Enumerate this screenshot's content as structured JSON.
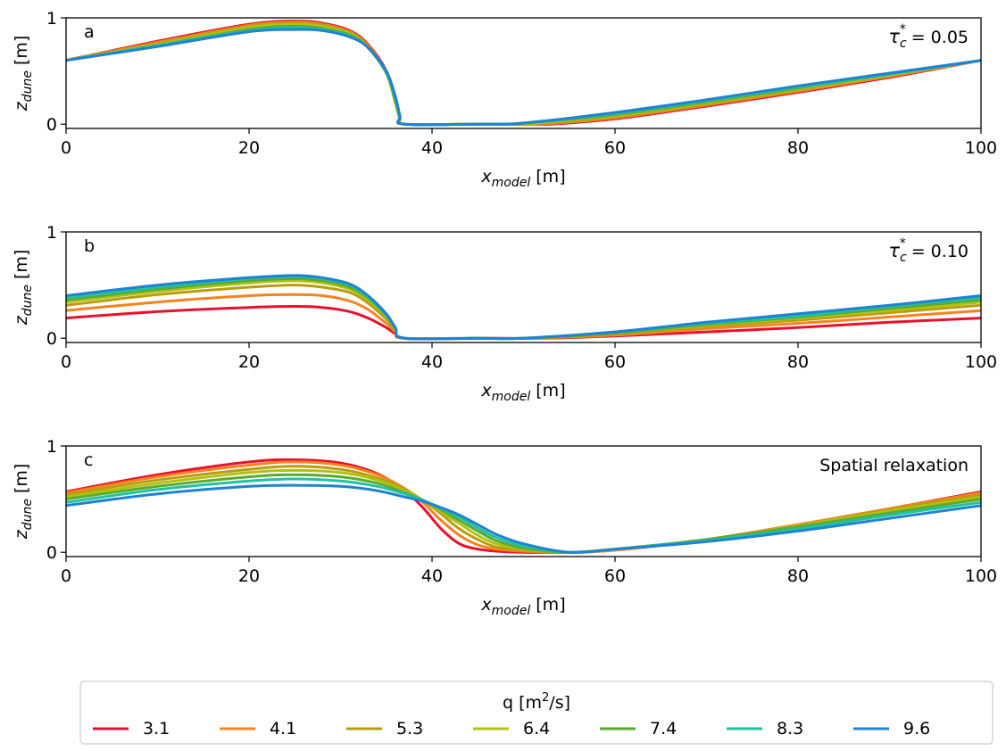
{
  "chart_data": [
    {
      "type": "line",
      "panel_label": "a",
      "annotation": "τ",
      "annotation_sub": "c",
      "annotation_sup": "*",
      "annotation_value": " = 0.05",
      "xlabel_main": "x",
      "xlabel_sub": "model",
      "xlabel_unit": " [m]",
      "ylabel_main": "z",
      "ylabel_sub": "dune",
      "ylabel_unit": " [m]",
      "xlim": [
        0,
        100
      ],
      "ylim": [
        -0.04,
        1.0
      ],
      "xticks": [
        "0",
        "20",
        "40",
        "60",
        "80",
        "100"
      ],
      "yticks": [
        "0",
        "1"
      ],
      "series": [
        {
          "name": "3.1",
          "x": [
            0,
            10,
            20,
            25,
            28,
            31,
            33,
            35,
            36,
            36.5,
            37,
            45,
            50,
            53,
            60,
            70,
            80,
            90,
            100
          ],
          "y": [
            0.6,
            0.78,
            0.94,
            0.97,
            0.95,
            0.88,
            0.75,
            0.5,
            0.2,
            0.05,
            0,
            0,
            0,
            0,
            0.05,
            0.17,
            0.3,
            0.44,
            0.6
          ]
        },
        {
          "name": "4.1",
          "x": [
            0,
            10,
            20,
            25,
            28,
            31,
            33,
            35,
            36,
            36.5,
            37,
            45,
            49,
            52,
            60,
            70,
            80,
            90,
            100
          ],
          "y": [
            0.6,
            0.77,
            0.93,
            0.96,
            0.94,
            0.87,
            0.74,
            0.49,
            0.2,
            0.05,
            0,
            0,
            0,
            0,
            0.06,
            0.18,
            0.31,
            0.45,
            0.6
          ]
        },
        {
          "name": "5.3",
          "x": [
            0,
            10,
            20,
            25,
            28,
            31,
            33,
            35,
            36,
            36.5,
            37,
            45,
            48,
            51,
            60,
            70,
            80,
            90,
            100
          ],
          "y": [
            0.6,
            0.76,
            0.92,
            0.95,
            0.93,
            0.86,
            0.73,
            0.49,
            0.2,
            0.05,
            0,
            0,
            0,
            0,
            0.07,
            0.19,
            0.32,
            0.46,
            0.6
          ]
        },
        {
          "name": "6.4",
          "x": [
            0,
            10,
            20,
            25,
            28,
            31,
            33,
            35,
            36,
            36.5,
            37,
            45,
            48,
            51,
            60,
            70,
            80,
            90,
            100
          ],
          "y": [
            0.6,
            0.75,
            0.91,
            0.94,
            0.92,
            0.85,
            0.72,
            0.48,
            0.2,
            0.05,
            0,
            0,
            0,
            0.01,
            0.08,
            0.2,
            0.33,
            0.46,
            0.6
          ]
        },
        {
          "name": "7.4",
          "x": [
            0,
            10,
            20,
            25,
            28,
            31,
            33,
            35,
            36,
            36.5,
            37,
            45,
            47,
            50,
            60,
            70,
            80,
            90,
            100
          ],
          "y": [
            0.6,
            0.74,
            0.89,
            0.92,
            0.9,
            0.84,
            0.72,
            0.48,
            0.22,
            0.06,
            0,
            0,
            0,
            0.01,
            0.09,
            0.21,
            0.34,
            0.47,
            0.6
          ]
        },
        {
          "name": "8.3",
          "x": [
            0,
            10,
            20,
            25,
            28,
            31,
            33,
            35,
            36,
            36.5,
            37,
            45,
            47,
            50,
            60,
            70,
            80,
            90,
            100
          ],
          "y": [
            0.6,
            0.74,
            0.88,
            0.91,
            0.89,
            0.83,
            0.72,
            0.49,
            0.24,
            0.07,
            0,
            0,
            0,
            0.01,
            0.1,
            0.22,
            0.35,
            0.47,
            0.6
          ]
        },
        {
          "name": "9.6",
          "x": [
            0,
            10,
            20,
            25,
            28,
            31,
            33,
            35,
            36,
            36.5,
            37,
            45,
            47,
            50,
            60,
            70,
            80,
            90,
            100
          ],
          "y": [
            0.6,
            0.73,
            0.87,
            0.89,
            0.88,
            0.82,
            0.72,
            0.5,
            0.26,
            0.08,
            0,
            0,
            0,
            0.01,
            0.11,
            0.23,
            0.36,
            0.48,
            0.6
          ]
        }
      ]
    },
    {
      "type": "line",
      "panel_label": "b",
      "annotation": "τ",
      "annotation_sub": "c",
      "annotation_sup": "*",
      "annotation_value": " = 0.10",
      "xlabel_main": "x",
      "xlabel_sub": "model",
      "xlabel_unit": " [m]",
      "ylabel_main": "z",
      "ylabel_sub": "dune",
      "ylabel_unit": " [m]",
      "xlim": [
        0,
        100
      ],
      "ylim": [
        -0.04,
        1.0
      ],
      "xticks": [
        "0",
        "20",
        "40",
        "60",
        "80",
        "100"
      ],
      "yticks": [
        "0",
        "1"
      ],
      "series": [
        {
          "name": "3.1",
          "x": [
            0,
            10,
            20,
            25,
            28,
            31,
            33,
            35,
            36,
            37,
            45,
            52,
            60,
            70,
            80,
            90,
            100
          ],
          "y": [
            0.19,
            0.25,
            0.29,
            0.3,
            0.29,
            0.25,
            0.19,
            0.1,
            0.04,
            0,
            0,
            0,
            0.02,
            0.06,
            0.1,
            0.15,
            0.19
          ]
        },
        {
          "name": "4.1",
          "x": [
            0,
            10,
            20,
            25,
            28,
            31,
            33,
            35,
            36,
            37,
            45,
            51,
            60,
            70,
            80,
            90,
            100
          ],
          "y": [
            0.26,
            0.34,
            0.4,
            0.41,
            0.4,
            0.35,
            0.27,
            0.14,
            0.06,
            0,
            0,
            0,
            0.03,
            0.09,
            0.14,
            0.2,
            0.26
          ]
        },
        {
          "name": "5.3",
          "x": [
            0,
            10,
            20,
            25,
            28,
            31,
            33,
            35,
            36,
            37,
            45,
            50,
            60,
            70,
            80,
            90,
            100
          ],
          "y": [
            0.31,
            0.41,
            0.48,
            0.5,
            0.48,
            0.43,
            0.33,
            0.18,
            0.08,
            0,
            0,
            0,
            0.04,
            0.11,
            0.17,
            0.24,
            0.31
          ]
        },
        {
          "name": "6.4",
          "x": [
            0,
            10,
            20,
            25,
            28,
            31,
            33,
            35,
            36,
            37,
            45,
            50,
            60,
            70,
            80,
            90,
            100
          ],
          "y": [
            0.34,
            0.44,
            0.52,
            0.54,
            0.52,
            0.46,
            0.36,
            0.2,
            0.09,
            0,
            0,
            0,
            0.05,
            0.12,
            0.19,
            0.26,
            0.34
          ]
        },
        {
          "name": "7.4",
          "x": [
            0,
            10,
            20,
            25,
            28,
            31,
            33,
            35,
            36,
            37,
            45,
            50,
            60,
            70,
            80,
            90,
            100
          ],
          "y": [
            0.36,
            0.46,
            0.54,
            0.56,
            0.54,
            0.48,
            0.38,
            0.21,
            0.09,
            0,
            0,
            0,
            0.05,
            0.13,
            0.2,
            0.28,
            0.36
          ]
        },
        {
          "name": "8.3",
          "x": [
            0,
            10,
            20,
            25,
            28,
            31,
            33,
            35,
            36,
            37,
            45,
            50,
            60,
            70,
            80,
            90,
            100
          ],
          "y": [
            0.38,
            0.48,
            0.56,
            0.58,
            0.56,
            0.5,
            0.39,
            0.22,
            0.1,
            0,
            0,
            0,
            0.06,
            0.14,
            0.21,
            0.3,
            0.38
          ]
        },
        {
          "name": "9.6",
          "x": [
            0,
            10,
            20,
            25,
            28,
            31,
            33,
            35,
            36,
            37,
            45,
            50,
            60,
            70,
            80,
            90,
            100
          ],
          "y": [
            0.4,
            0.5,
            0.57,
            0.59,
            0.57,
            0.51,
            0.4,
            0.23,
            0.1,
            0,
            0,
            0,
            0.06,
            0.15,
            0.23,
            0.31,
            0.4
          ]
        }
      ]
    },
    {
      "type": "line",
      "panel_label": "c",
      "annotation": "Spatial relaxation",
      "xlabel_main": "x",
      "xlabel_sub": "model",
      "xlabel_unit": " [m]",
      "ylabel_main": "z",
      "ylabel_sub": "dune",
      "ylabel_unit": " [m]",
      "xlim": [
        0,
        100
      ],
      "ylim": [
        -0.04,
        1.0
      ],
      "xticks": [
        "0",
        "20",
        "40",
        "60",
        "80",
        "100"
      ],
      "yticks": [
        "0",
        "1"
      ],
      "series": [
        {
          "name": "3.1",
          "x": [
            0,
            10,
            20,
            25,
            30,
            34,
            37,
            39,
            41,
            43,
            45,
            47,
            50,
            55,
            60,
            70,
            80,
            90,
            100
          ],
          "y": [
            0.57,
            0.73,
            0.85,
            0.87,
            0.84,
            0.74,
            0.58,
            0.42,
            0.22,
            0.08,
            0.03,
            0.01,
            0,
            0,
            0.02,
            0.12,
            0.26,
            0.41,
            0.57
          ]
        },
        {
          "name": "4.1",
          "x": [
            0,
            10,
            20,
            25,
            30,
            34,
            37,
            39,
            41,
            43,
            45,
            47,
            50,
            55,
            60,
            70,
            80,
            90,
            100
          ],
          "y": [
            0.56,
            0.71,
            0.82,
            0.85,
            0.82,
            0.73,
            0.6,
            0.47,
            0.3,
            0.16,
            0.07,
            0.03,
            0.01,
            0,
            0.02,
            0.12,
            0.26,
            0.41,
            0.56
          ]
        },
        {
          "name": "5.3",
          "x": [
            0,
            10,
            20,
            25,
            30,
            34,
            37,
            39,
            41,
            43,
            45,
            47,
            50,
            55,
            60,
            70,
            80,
            90,
            100
          ],
          "y": [
            0.54,
            0.68,
            0.78,
            0.81,
            0.78,
            0.7,
            0.59,
            0.49,
            0.36,
            0.22,
            0.12,
            0.05,
            0.02,
            0,
            0.03,
            0.12,
            0.25,
            0.4,
            0.54
          ]
        },
        {
          "name": "6.4",
          "x": [
            0,
            10,
            20,
            25,
            30,
            34,
            37,
            39,
            41,
            43,
            45,
            47,
            50,
            55,
            60,
            70,
            80,
            90,
            100
          ],
          "y": [
            0.52,
            0.65,
            0.75,
            0.77,
            0.75,
            0.68,
            0.58,
            0.49,
            0.38,
            0.27,
            0.16,
            0.08,
            0.03,
            0,
            0.03,
            0.12,
            0.25,
            0.39,
            0.52
          ]
        },
        {
          "name": "7.4",
          "x": [
            0,
            10,
            20,
            25,
            30,
            34,
            37,
            39,
            41,
            43,
            45,
            47,
            50,
            55,
            60,
            70,
            80,
            90,
            100
          ],
          "y": [
            0.5,
            0.62,
            0.71,
            0.73,
            0.71,
            0.65,
            0.56,
            0.49,
            0.4,
            0.3,
            0.2,
            0.11,
            0.04,
            0,
            0.03,
            0.12,
            0.24,
            0.37,
            0.5
          ]
        },
        {
          "name": "8.3",
          "x": [
            0,
            10,
            20,
            25,
            30,
            34,
            37,
            39,
            41,
            43,
            45,
            47,
            50,
            55,
            60,
            70,
            80,
            90,
            100
          ],
          "y": [
            0.47,
            0.59,
            0.67,
            0.69,
            0.67,
            0.62,
            0.55,
            0.49,
            0.41,
            0.33,
            0.23,
            0.14,
            0.06,
            0,
            0.03,
            0.11,
            0.22,
            0.35,
            0.47
          ]
        },
        {
          "name": "9.6",
          "x": [
            0,
            10,
            20,
            25,
            30,
            34,
            37,
            39,
            41,
            43,
            45,
            47,
            50,
            55,
            60,
            70,
            80,
            90,
            100
          ],
          "y": [
            0.44,
            0.55,
            0.62,
            0.63,
            0.62,
            0.58,
            0.52,
            0.48,
            0.42,
            0.35,
            0.26,
            0.17,
            0.08,
            0,
            0.03,
            0.1,
            0.2,
            0.32,
            0.44
          ]
        }
      ]
    }
  ],
  "legend": {
    "title_main": "q [m",
    "title_sup": "2",
    "title_rest": "/s]",
    "items": [
      {
        "label": "3.1",
        "color": "#e8112d"
      },
      {
        "label": "4.1",
        "color": "#f6831e"
      },
      {
        "label": "5.3",
        "color": "#b89d0f"
      },
      {
        "label": "6.4",
        "color": "#b2c00e"
      },
      {
        "label": "7.4",
        "color": "#5aaa32"
      },
      {
        "label": "8.3",
        "color": "#1ec3a2"
      },
      {
        "label": "9.6",
        "color": "#1f82d2"
      }
    ]
  }
}
